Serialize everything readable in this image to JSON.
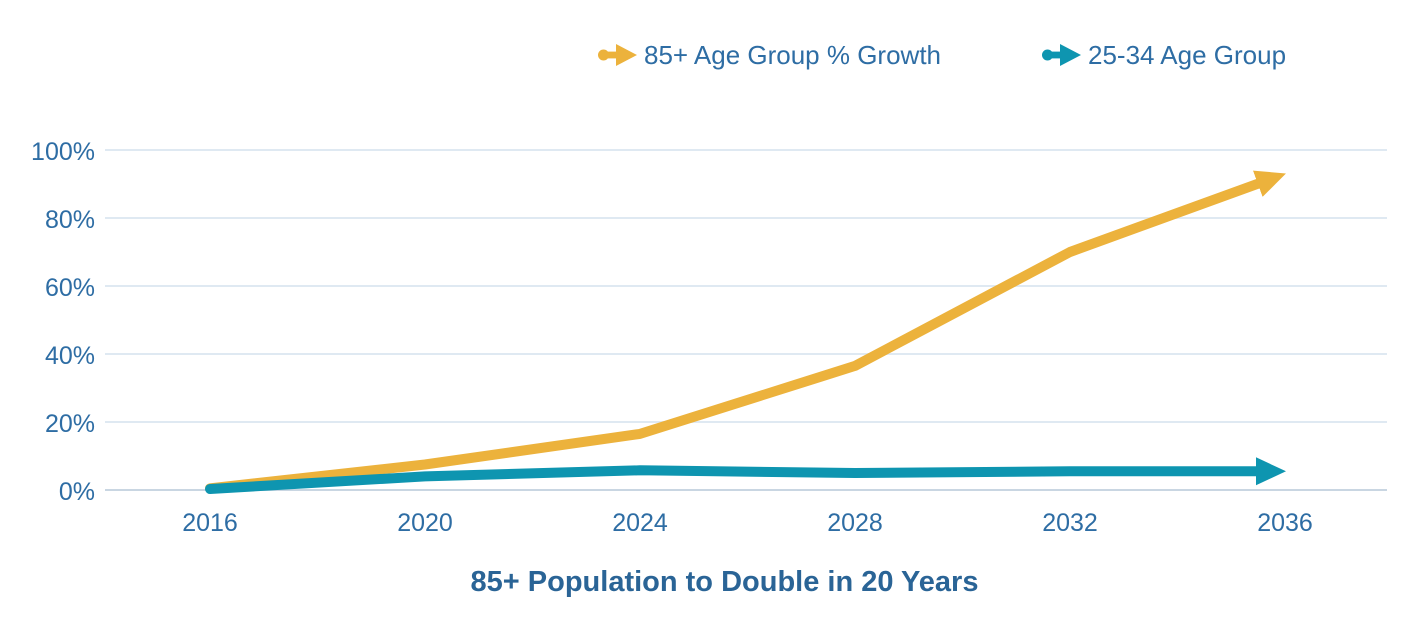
{
  "chart_data": {
    "type": "line",
    "title": "85+ Population to Double in 20 Years",
    "x": [
      2016,
      2020,
      2024,
      2028,
      2032,
      2036
    ],
    "x_tick_labels": [
      "2016",
      "2020",
      "2024",
      "2028",
      "2032",
      "2036"
    ],
    "y_ticks": [
      0,
      20,
      40,
      60,
      80,
      100
    ],
    "y_tick_labels": [
      "0%",
      "20%",
      "40%",
      "60%",
      "80%",
      "100%"
    ],
    "ylim": [
      0,
      100
    ],
    "xlim": [
      2016,
      2036
    ],
    "grid": "horizontal",
    "legend_position": "top",
    "series": [
      {
        "name": "85+ Age Group % Growth",
        "color": "#ECB23C",
        "values": [
          0.5,
          7.5,
          16.5,
          36.5,
          70,
          93
        ],
        "arrow_end": true
      },
      {
        "name": "25-34 Age Group",
        "color": "#0E95B0",
        "values": [
          0.3,
          4.0,
          5.8,
          5.0,
          5.5,
          5.5
        ],
        "arrow_end": true
      }
    ],
    "colors": {
      "tick_text": "#2E6DA4",
      "title_text": "#2A6496",
      "gridline": "#DFE9F2",
      "zero_line": "#C9D6E2",
      "background": "#FFFFFF"
    }
  }
}
